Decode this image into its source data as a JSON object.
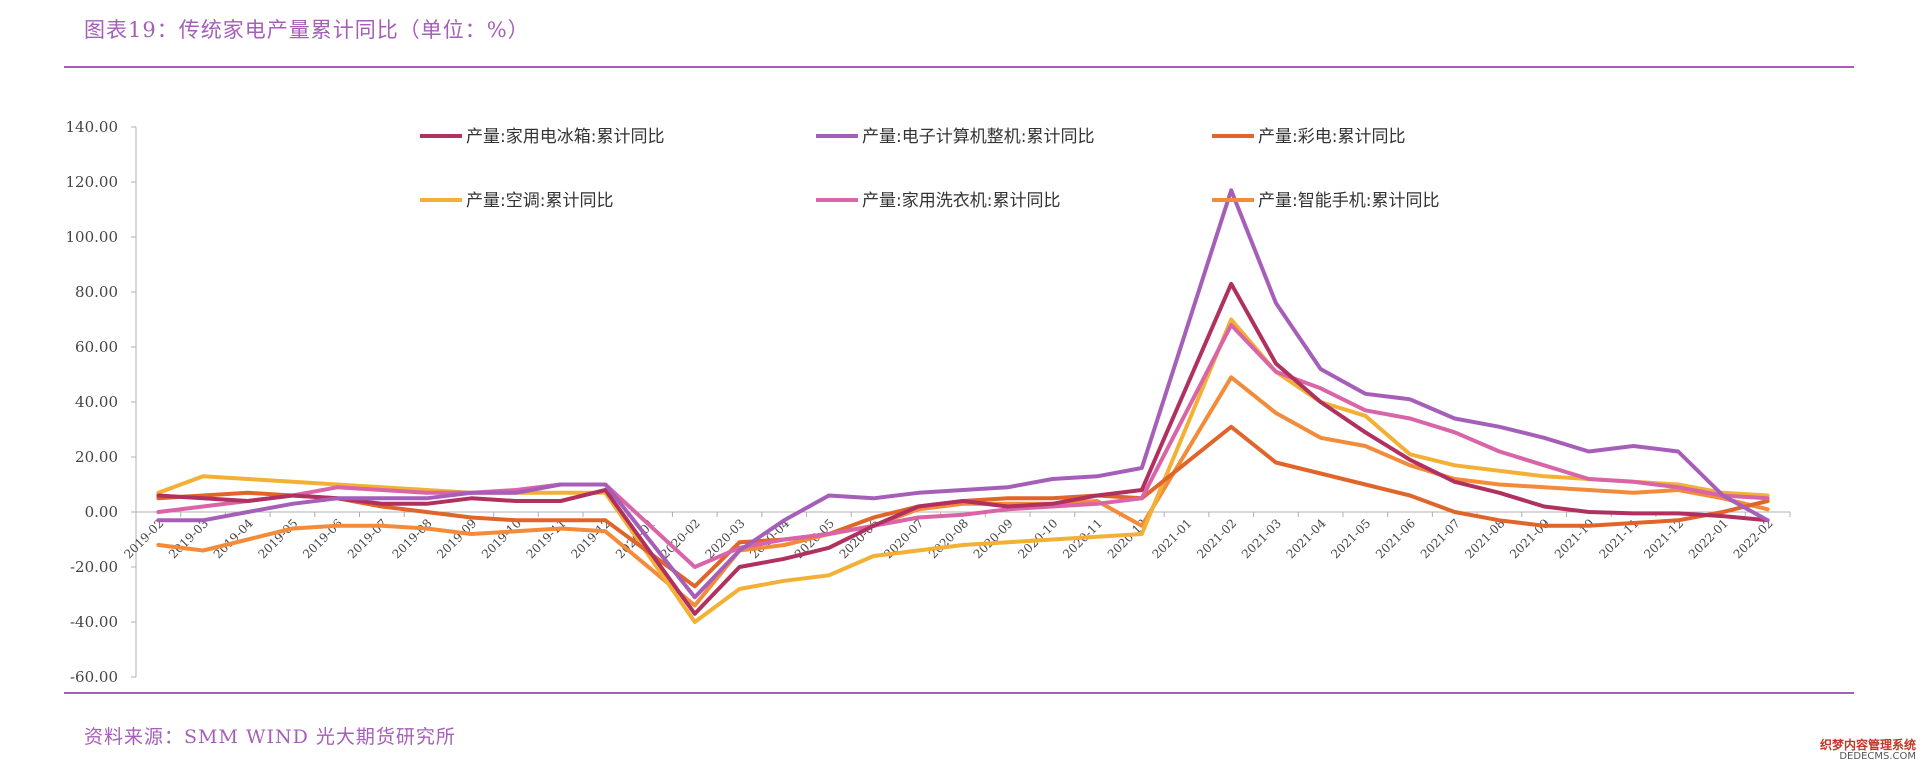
{
  "header": {
    "title": "图表19：传统家电产量累计同比（单位：%）"
  },
  "footer": {
    "source": "资料来源：SMM WIND 光大期货研究所",
    "watermark_line1": "织梦内容管理系统",
    "watermark_line2": "DEDECMS.COM"
  },
  "chart_data": {
    "type": "line",
    "title": "",
    "xlabel": "",
    "ylabel": "",
    "ylim": [
      -60,
      140
    ],
    "ytick_step": 20,
    "yticks": [
      "-60.00",
      "-40.00",
      "-20.00",
      "0.00",
      "20.00",
      "40.00",
      "60.00",
      "80.00",
      "100.00",
      "120.00",
      "140.00"
    ],
    "legend_position": "top",
    "grid": false,
    "categories": [
      "2019-02",
      "2019-03",
      "2019-04",
      "2019-05",
      "2019-06",
      "2019-07",
      "2019-08",
      "2019-09",
      "2019-10",
      "2019-11",
      "2019-12",
      "2020-01",
      "2020-02",
      "2020-03",
      "2020-04",
      "2020-05",
      "2020-06",
      "2020-07",
      "2020-08",
      "2020-09",
      "2020-10",
      "2020-11",
      "2020-12",
      "2021-01",
      "2021-02",
      "2021-03",
      "2021-04",
      "2021-05",
      "2021-06",
      "2021-07",
      "2021-08",
      "2021-09",
      "2021-10",
      "2021-11",
      "2021-12",
      "2022-01",
      "2022-02"
    ],
    "series": [
      {
        "name": "产量:家用电冰箱:累计同比",
        "color": "#b03060",
        "values": [
          6,
          5,
          4,
          6,
          5,
          3,
          3,
          5,
          4,
          4,
          8,
          null,
          -37,
          -20,
          -17,
          -13,
          -5,
          2,
          4,
          2,
          3,
          6,
          8,
          null,
          83,
          54,
          40,
          29,
          19,
          11,
          7,
          2,
          0,
          -0.5,
          -0.5,
          -1.5,
          -3
        ]
      },
      {
        "name": "产量:电子计算机整机:累计同比",
        "color": "#a55fb8",
        "values": [
          -3,
          -3,
          0,
          3,
          5,
          5,
          5,
          7,
          7,
          10,
          10,
          null,
          -31,
          -14,
          -3,
          6,
          5,
          7,
          8,
          9,
          12,
          13,
          16,
          null,
          117,
          76,
          52,
          43,
          41,
          34,
          31,
          27,
          22,
          24,
          22,
          6,
          -3
        ]
      },
      {
        "name": "产量:彩电:累计同比",
        "color": "#e0652a",
        "values": [
          5,
          6,
          7,
          6,
          5,
          2,
          0,
          -2,
          -3,
          -3,
          -3,
          null,
          -27,
          -11,
          -10,
          -8,
          -2,
          2,
          4,
          5,
          5,
          6,
          5,
          null,
          31,
          18,
          14,
          10,
          6,
          0,
          -3,
          -5,
          -5,
          -4,
          -3,
          0,
          4
        ]
      },
      {
        "name": "产量:空调:累计同比",
        "color": "#f2b035",
        "values": [
          7,
          13,
          12,
          11,
          10,
          9,
          8,
          7,
          7,
          7,
          7,
          null,
          -40,
          -28,
          -25,
          -23,
          -16,
          -14,
          -12,
          -11,
          -10,
          -9,
          -8,
          null,
          70,
          51,
          40,
          35,
          21,
          17,
          15,
          13,
          12,
          11,
          10,
          7,
          6
        ]
      },
      {
        "name": "产量:家用洗衣机:累计同比",
        "color": "#d964a8",
        "values": [
          0,
          2,
          4,
          6,
          9,
          8,
          7,
          7,
          8,
          10,
          10,
          null,
          -20,
          -13,
          -10,
          -8,
          -5,
          -2,
          -1,
          1,
          2,
          3,
          5,
          null,
          68,
          51,
          45,
          37,
          34,
          29,
          22,
          17,
          12,
          11,
          9,
          6,
          5
        ]
      },
      {
        "name": "产量:智能手机:累计同比",
        "color": "#f28b3a",
        "values": [
          -12,
          -14,
          -10,
          -6,
          -5,
          -5,
          -6,
          -8,
          -7,
          -6,
          -7,
          null,
          -34,
          -14,
          -12,
          -8,
          -5,
          1,
          3,
          3,
          3,
          4,
          -5,
          null,
          49,
          36,
          27,
          24,
          17,
          12,
          10,
          9,
          8,
          7,
          8,
          5,
          1
        ]
      }
    ]
  }
}
